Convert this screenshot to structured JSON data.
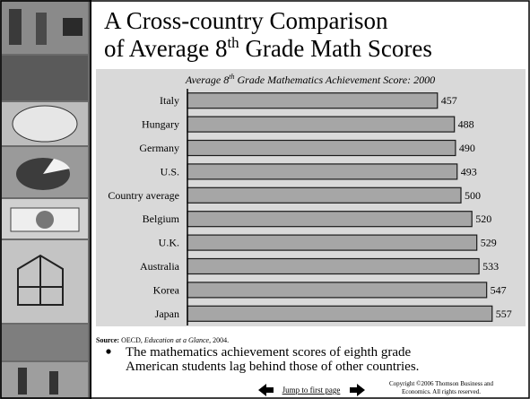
{
  "slide": {
    "title_line1": "A Cross-country Comparison",
    "title_line2_before": "of Average 8",
    "title_line2_sup": "th",
    "title_line2_after": " Grade Math Scores"
  },
  "chart_data": {
    "type": "bar",
    "orientation": "horizontal",
    "title_before": "Average 8",
    "title_sup": "th",
    "title_after": " Grade Mathematics Achievement Score: 2000",
    "categories": [
      "Italy",
      "Hungary",
      "Germany",
      "U.S.",
      "Country average",
      "Belgium",
      "U.K.",
      "Australia",
      "Korea",
      "Japan"
    ],
    "values": [
      457,
      488,
      490,
      493,
      500,
      520,
      529,
      533,
      547,
      557
    ],
    "color": "#a6a6a6",
    "xlim": [
      0,
      600
    ]
  },
  "source": {
    "label": "Source:",
    "before": " OECD, ",
    "work": "Education at a Glance",
    "after": ", 2004."
  },
  "bullet": [
    "The mathematics achievement scores of eighth grade",
    "American students lag behind those of other countries."
  ],
  "footer": {
    "link": "Jump to first page",
    "copyright": [
      "Copyright ©2006  Thomson Business and",
      "Economics. All rights reserved."
    ]
  }
}
